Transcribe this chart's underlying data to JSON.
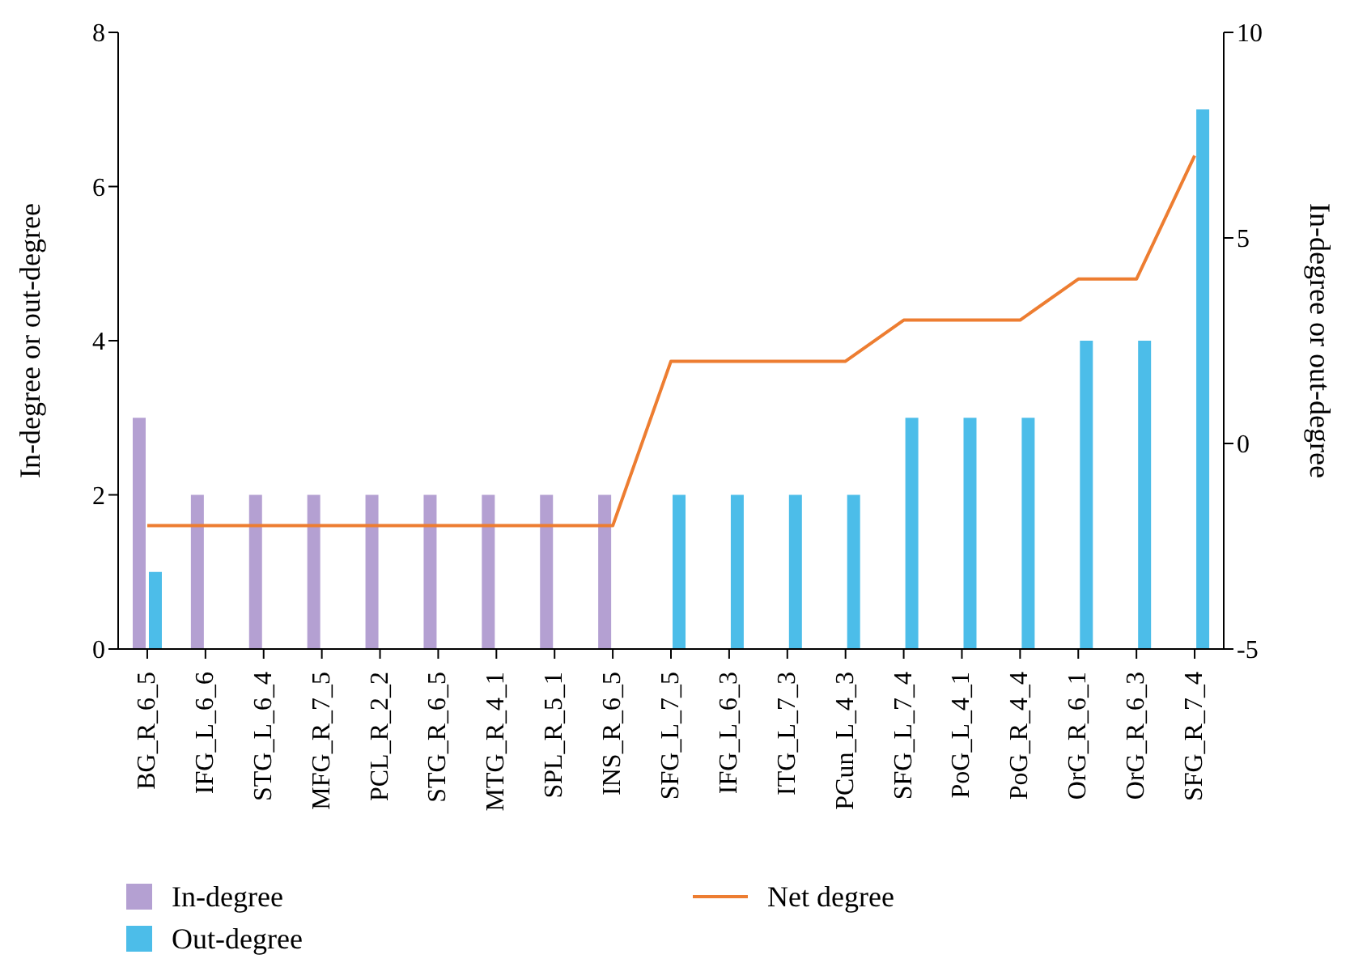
{
  "chart_data": {
    "type": "bar",
    "ylabel": "In-degree or out-degree",
    "y2label": "In-degree or out-degree",
    "categories": [
      "BG_R_6_5",
      "IFG_L_6_6",
      "STG_L_6_4",
      "MFG_R_7_5",
      "PCL_R_2_2",
      "STG_R_6_5",
      "MTG_R_4_1",
      "SPL_R_5_1",
      "INS_R_6_5",
      "SFG_L_7_5",
      "IFG_L_6_3",
      "ITG_L_7_3",
      "PCun_L_4_3",
      "SFG_L_7_4",
      "PoG_L_4_1",
      "PoG_R_4_4",
      "OrG_R_6_1",
      "OrG_R_6_3",
      "SFG_R_7_4"
    ],
    "series": [
      {
        "name": "In-degree",
        "color": "#b4a0d2",
        "values": [
          3,
          2,
          2,
          2,
          2,
          2,
          2,
          2,
          2,
          0,
          0,
          0,
          0,
          0,
          0,
          0,
          0,
          0,
          0
        ]
      },
      {
        "name": "Out-degree",
        "color": "#4cbde9",
        "values": [
          1,
          0,
          0,
          0,
          0,
          0,
          0,
          0,
          0,
          2,
          2,
          2,
          2,
          3,
          3,
          3,
          4,
          4,
          7
        ]
      },
      {
        "name": "Net degree",
        "type": "line",
        "axis": "y2",
        "color": "#ed7d31",
        "values": [
          -2,
          -2,
          -2,
          -2,
          -2,
          -2,
          -2,
          -2,
          -2,
          2,
          2,
          2,
          2,
          3,
          3,
          3,
          4,
          4,
          7
        ]
      }
    ],
    "ylim": [
      0,
      8
    ],
    "yticks": [
      0,
      2,
      4,
      6,
      8
    ],
    "y2lim": [
      -5,
      10
    ],
    "y2ticks": [
      -5,
      0,
      5,
      10
    ],
    "grid": false,
    "legend": "bottom"
  }
}
